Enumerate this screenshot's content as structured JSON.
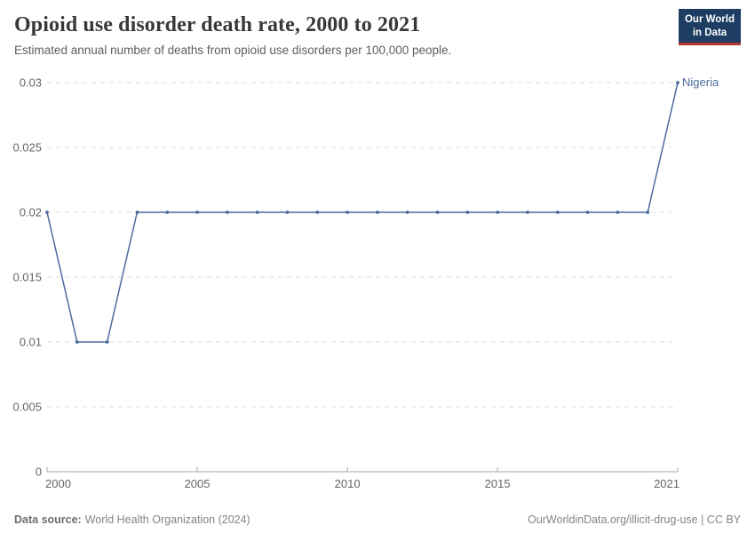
{
  "header": {
    "title": "Opioid use disorder death rate, 2000 to 2021",
    "subtitle": "Estimated annual number of deaths from opioid use disorders per 100,000 people."
  },
  "logo": {
    "line1": "Our World",
    "line2": "in Data",
    "bg_color": "#1d3d63",
    "accent_color": "#b5332e"
  },
  "chart_data": {
    "type": "line",
    "title": "Opioid use disorder death rate, 2000 to 2021",
    "x": [
      2000,
      2001,
      2002,
      2003,
      2004,
      2005,
      2006,
      2007,
      2008,
      2009,
      2010,
      2011,
      2012,
      2013,
      2014,
      2015,
      2016,
      2017,
      2018,
      2019,
      2020,
      2021
    ],
    "series": [
      {
        "name": "Nigeria",
        "color": "#4c6a9c",
        "values": [
          0.02,
          0.01,
          0.01,
          0.02,
          0.02,
          0.02,
          0.02,
          0.02,
          0.02,
          0.02,
          0.02,
          0.02,
          0.02,
          0.02,
          0.02,
          0.02,
          0.02,
          0.02,
          0.02,
          0.02,
          0.02,
          0.03
        ]
      }
    ],
    "xlabel": "",
    "ylabel": "",
    "ylim": [
      0,
      0.03
    ],
    "yticks": [
      0,
      0.005,
      0.01,
      0.015,
      0.02,
      0.025,
      0.03
    ],
    "ytick_labels": [
      "0",
      "0.005",
      "0.01",
      "0.015",
      "0.02",
      "0.025",
      "0.03"
    ],
    "xticks": [
      2000,
      2005,
      2010,
      2015,
      2021
    ],
    "xtick_labels": [
      "2000",
      "2005",
      "2010",
      "2015",
      "2021"
    ],
    "grid": "horizontal-dashed",
    "legend_position": "end-of-line",
    "end_label": "Nigeria",
    "axis_color": "#a5a5a5",
    "grid_color": "#dedede",
    "tick_label_color": "#666666"
  },
  "footer": {
    "source_label": "Data source:",
    "source_text": "World Health Organization (2024)",
    "link_text": "OurWorldinData.org/illicit-drug-use | CC BY"
  }
}
